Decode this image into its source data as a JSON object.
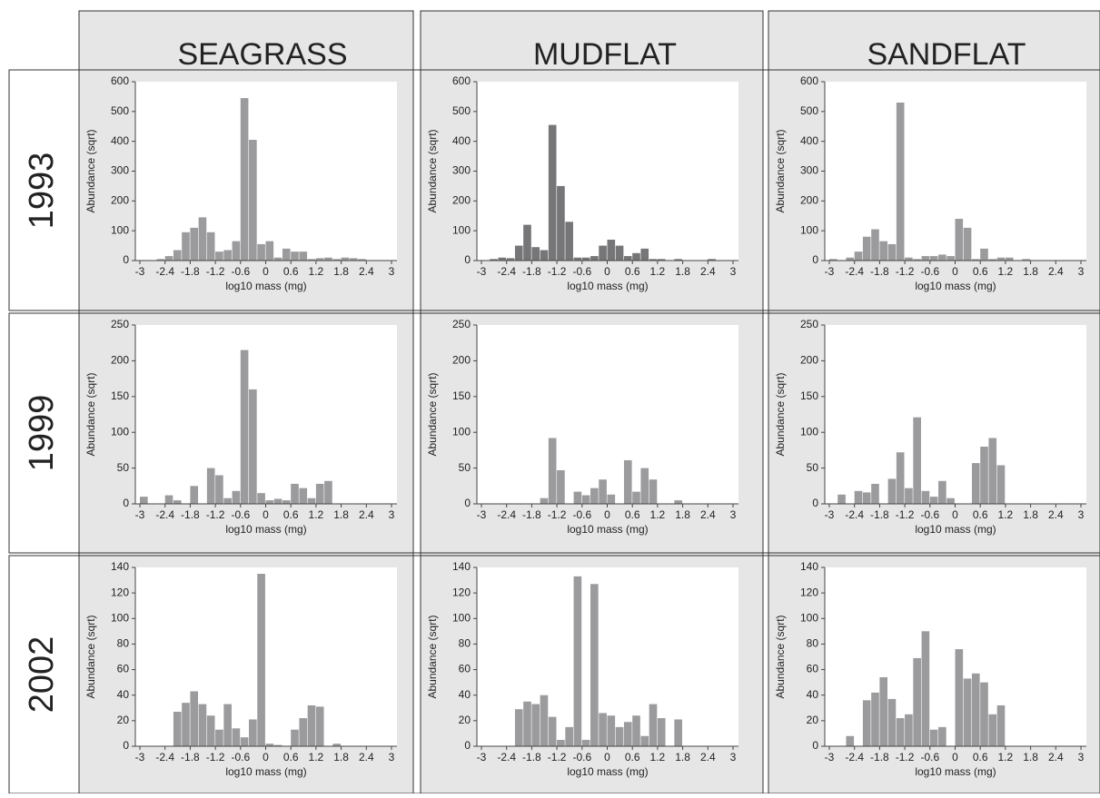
{
  "column_headers": [
    "SEAGRASS",
    "MUDFLAT",
    "SANDFLAT"
  ],
  "row_headers": [
    "1993",
    "1999",
    "2002"
  ],
  "chart_data": [
    {
      "type": "histogram",
      "xlabel": "log10 mass (mg)",
      "ylabel": "Abundance (sqrt)",
      "color": "#9b9b9d",
      "bins": [
        -3,
        -2.8,
        -2.6,
        -2.4,
        -2.2,
        -2,
        -1.8,
        -1.6,
        -1.4,
        -1.2,
        -1,
        -0.8,
        -0.6,
        -0.4,
        -0.2,
        0,
        0.2,
        0.4,
        0.6,
        0.8,
        1,
        1.2,
        1.4,
        1.6,
        1.8,
        2,
        2.2,
        2.4,
        2.6,
        2.8,
        3
      ],
      "values": [
        0,
        0,
        5,
        15,
        35,
        95,
        110,
        145,
        95,
        30,
        35,
        65,
        545,
        405,
        55,
        65,
        10,
        40,
        30,
        30,
        5,
        8,
        10,
        5,
        10,
        8,
        5,
        0,
        0,
        0
      ],
      "xlim": [
        -3,
        3
      ],
      "xticks": [
        -3,
        -2.4,
        -1.8,
        -1.2,
        -0.6,
        0,
        0.6,
        1.2,
        1.8,
        2.4,
        3
      ],
      "ylim": [
        0,
        600
      ],
      "yticks": [
        0,
        100,
        200,
        300,
        400,
        500,
        600
      ]
    },
    {
      "type": "histogram",
      "xlabel": "log10 mass (mg)",
      "ylabel": "Abundance (sqrt)",
      "color": "#767678",
      "bins": [
        -3,
        -2.8,
        -2.6,
        -2.4,
        -2.2,
        -2,
        -1.8,
        -1.6,
        -1.4,
        -1.2,
        -1,
        -0.8,
        -0.6,
        -0.4,
        -0.2,
        0,
        0.2,
        0.4,
        0.6,
        0.8,
        1,
        1.2,
        1.4,
        1.6,
        1.8,
        2,
        2.2,
        2.4,
        2.6,
        2.8,
        3
      ],
      "values": [
        0,
        5,
        10,
        8,
        50,
        120,
        45,
        35,
        455,
        250,
        130,
        10,
        10,
        15,
        50,
        70,
        50,
        15,
        25,
        40,
        5,
        5,
        0,
        5,
        0,
        0,
        0,
        5,
        0,
        0
      ],
      "xlim": [
        -3,
        3
      ],
      "xticks": [
        -3,
        -2.4,
        -1.8,
        -1.2,
        -0.6,
        0,
        0.6,
        1.2,
        1.8,
        2.4,
        3
      ],
      "ylim": [
        0,
        600
      ],
      "yticks": [
        0,
        100,
        200,
        300,
        400,
        500,
        600
      ]
    },
    {
      "type": "histogram",
      "xlabel": "log10 mass (mg)",
      "ylabel": "Abundance (sqrt)",
      "color": "#9b9b9d",
      "bins": [
        -3,
        -2.8,
        -2.6,
        -2.4,
        -2.2,
        -2,
        -1.8,
        -1.6,
        -1.4,
        -1.2,
        -1,
        -0.8,
        -0.6,
        -0.4,
        -0.2,
        0,
        0.2,
        0.4,
        0.6,
        0.8,
        1,
        1.2,
        1.4,
        1.6,
        1.8,
        2,
        2.2,
        2.4,
        2.6,
        2.8,
        3
      ],
      "values": [
        5,
        0,
        10,
        30,
        80,
        105,
        65,
        55,
        530,
        10,
        5,
        15,
        15,
        20,
        15,
        140,
        110,
        5,
        40,
        5,
        10,
        10,
        0,
        5,
        0,
        0,
        0,
        0,
        0,
        0
      ],
      "xlim": [
        -3,
        3
      ],
      "xticks": [
        -3,
        -2.4,
        -1.8,
        -1.2,
        -0.6,
        0,
        0.6,
        1.2,
        1.8,
        2.4,
        3
      ],
      "ylim": [
        0,
        600
      ],
      "yticks": [
        0,
        100,
        200,
        300,
        400,
        500,
        600
      ]
    },
    {
      "type": "histogram",
      "xlabel": "log10 mass (mg)",
      "ylabel": "Abundance (sqrt)",
      "color": "#9b9b9d",
      "bins": [
        -3,
        -2.8,
        -2.6,
        -2.4,
        -2.2,
        -2,
        -1.8,
        -1.6,
        -1.4,
        -1.2,
        -1,
        -0.8,
        -0.6,
        -0.4,
        -0.2,
        0,
        0.2,
        0.4,
        0.6,
        0.8,
        1,
        1.2,
        1.4,
        1.6,
        1.8,
        2,
        2.2,
        2.4,
        2.6,
        2.8,
        3
      ],
      "values": [
        10,
        0,
        0,
        12,
        5,
        0,
        25,
        0,
        50,
        40,
        8,
        18,
        215,
        160,
        15,
        5,
        7,
        5,
        28,
        22,
        8,
        28,
        32,
        0,
        0,
        0,
        0,
        0,
        0,
        0
      ],
      "xlim": [
        -3,
        3
      ],
      "xticks": [
        -3,
        -2.4,
        -1.8,
        -1.2,
        -0.6,
        0,
        0.6,
        1.2,
        1.8,
        2.4,
        3
      ],
      "ylim": [
        0,
        250
      ],
      "yticks": [
        0,
        50,
        100,
        150,
        200,
        250
      ]
    },
    {
      "type": "histogram",
      "xlabel": "log10 mass (mg)",
      "ylabel": "Abundance (sqrt)",
      "color": "#9b9b9d",
      "bins": [
        -3,
        -2.8,
        -2.6,
        -2.4,
        -2.2,
        -2,
        -1.8,
        -1.6,
        -1.4,
        -1.2,
        -1,
        -0.8,
        -0.6,
        -0.4,
        -0.2,
        0,
        0.2,
        0.4,
        0.6,
        0.8,
        1,
        1.2,
        1.4,
        1.6,
        1.8,
        2,
        2.2,
        2.4,
        2.6,
        2.8,
        3
      ],
      "values": [
        0,
        0,
        0,
        0,
        0,
        0,
        0,
        8,
        92,
        47,
        0,
        17,
        12,
        22,
        34,
        13,
        0,
        61,
        17,
        50,
        34,
        0,
        0,
        5,
        0,
        0,
        0,
        0,
        0,
        0
      ],
      "xlim": [
        -3,
        3
      ],
      "xticks": [
        -3,
        -2.4,
        -1.8,
        -1.2,
        -0.6,
        0,
        0.6,
        1.2,
        1.8,
        2.4,
        3
      ],
      "ylim": [
        0,
        250
      ],
      "yticks": [
        0,
        50,
        100,
        150,
        200,
        250
      ]
    },
    {
      "type": "histogram",
      "xlabel": "log10 mass (mg)",
      "ylabel": "Abundance (sqrt)",
      "color": "#9b9b9d",
      "bins": [
        -3,
        -2.8,
        -2.6,
        -2.4,
        -2.2,
        -2,
        -1.8,
        -1.6,
        -1.4,
        -1.2,
        -1,
        -0.8,
        -0.6,
        -0.4,
        -0.2,
        0,
        0.2,
        0.4,
        0.6,
        0.8,
        1,
        1.2,
        1.4,
        1.6,
        1.8,
        2,
        2.2,
        2.4,
        2.6,
        2.8,
        3
      ],
      "values": [
        0,
        13,
        0,
        18,
        16,
        28,
        0,
        35,
        72,
        22,
        121,
        18,
        10,
        32,
        8,
        0,
        0,
        57,
        80,
        92,
        54,
        0,
        0,
        0,
        0,
        0,
        0,
        0,
        0,
        0
      ],
      "xlim": [
        -3,
        3
      ],
      "xticks": [
        -3,
        -2.4,
        -1.8,
        -1.2,
        -0.6,
        0,
        0.6,
        1.2,
        1.8,
        2.4,
        3
      ],
      "ylim": [
        0,
        250
      ],
      "yticks": [
        0,
        50,
        100,
        150,
        200,
        250
      ]
    },
    {
      "type": "histogram",
      "xlabel": "log10 mass (mg)",
      "ylabel": "Abundance (sqrt)",
      "color": "#9b9b9d",
      "bins": [
        -3,
        -2.8,
        -2.6,
        -2.4,
        -2.2,
        -2,
        -1.8,
        -1.6,
        -1.4,
        -1.2,
        -1,
        -0.8,
        -0.6,
        -0.4,
        -0.2,
        0,
        0.2,
        0.4,
        0.6,
        0.8,
        1,
        1.2,
        1.4,
        1.6,
        1.8,
        2,
        2.2,
        2.4,
        2.6,
        2.8,
        3
      ],
      "values": [
        0,
        0,
        0,
        0,
        27,
        34,
        43,
        33,
        24,
        13,
        33,
        14,
        7,
        21,
        135,
        2,
        1,
        0,
        13,
        22,
        32,
        31,
        0,
        2,
        0,
        0,
        0,
        0,
        0,
        0
      ],
      "xlim": [
        -3,
        3
      ],
      "xticks": [
        -3,
        -2.4,
        -1.8,
        -1.2,
        -0.6,
        0,
        0.6,
        1.2,
        1.8,
        2.4,
        3
      ],
      "ylim": [
        0,
        140
      ],
      "yticks": [
        0,
        20,
        40,
        60,
        80,
        100,
        120,
        140
      ]
    },
    {
      "type": "histogram",
      "xlabel": "log10 mass (mg)",
      "ylabel": "Abundance (sqrt)",
      "color": "#9b9b9d",
      "bins": [
        -3,
        -2.8,
        -2.6,
        -2.4,
        -2.2,
        -2,
        -1.8,
        -1.6,
        -1.4,
        -1.2,
        -1,
        -0.8,
        -0.6,
        -0.4,
        -0.2,
        0,
        0.2,
        0.4,
        0.6,
        0.8,
        1,
        1.2,
        1.4,
        1.6,
        1.8,
        2,
        2.2,
        2.4,
        2.6,
        2.8,
        3
      ],
      "values": [
        0,
        0,
        0,
        0,
        29,
        35,
        33,
        40,
        23,
        5,
        15,
        133,
        5,
        127,
        26,
        24,
        15,
        19,
        24,
        8,
        33,
        22,
        0,
        21,
        0,
        0,
        0,
        0,
        0,
        0
      ],
      "xlim": [
        -3,
        3
      ],
      "xticks": [
        -3,
        -2.4,
        -1.8,
        -1.2,
        -0.6,
        0,
        0.6,
        1.2,
        1.8,
        2.4,
        3
      ],
      "ylim": [
        0,
        140
      ],
      "yticks": [
        0,
        20,
        40,
        60,
        80,
        100,
        120,
        140
      ]
    },
    {
      "type": "histogram",
      "xlabel": "log10 mass (mg)",
      "ylabel": "Abundance (sqrt)",
      "color": "#9b9b9d",
      "bins": [
        -3,
        -2.8,
        -2.6,
        -2.4,
        -2.2,
        -2,
        -1.8,
        -1.6,
        -1.4,
        -1.2,
        -1,
        -0.8,
        -0.6,
        -0.4,
        -0.2,
        0,
        0.2,
        0.4,
        0.6,
        0.8,
        1,
        1.2,
        1.4,
        1.6,
        1.8,
        2,
        2.2,
        2.4,
        2.6,
        2.8,
        3
      ],
      "values": [
        0,
        0,
        8,
        0,
        36,
        42,
        54,
        37,
        22,
        25,
        69,
        90,
        13,
        15,
        0,
        76,
        53,
        57,
        50,
        25,
        32,
        0,
        0,
        0,
        0,
        0,
        0,
        0,
        0,
        0
      ],
      "xlim": [
        -3,
        3
      ],
      "xticks": [
        -3,
        -2.4,
        -1.8,
        -1.2,
        -0.6,
        0,
        0.6,
        1.2,
        1.8,
        2.4,
        3
      ],
      "ylim": [
        0,
        140
      ],
      "yticks": [
        0,
        20,
        40,
        60,
        80,
        100,
        120,
        140
      ]
    }
  ]
}
